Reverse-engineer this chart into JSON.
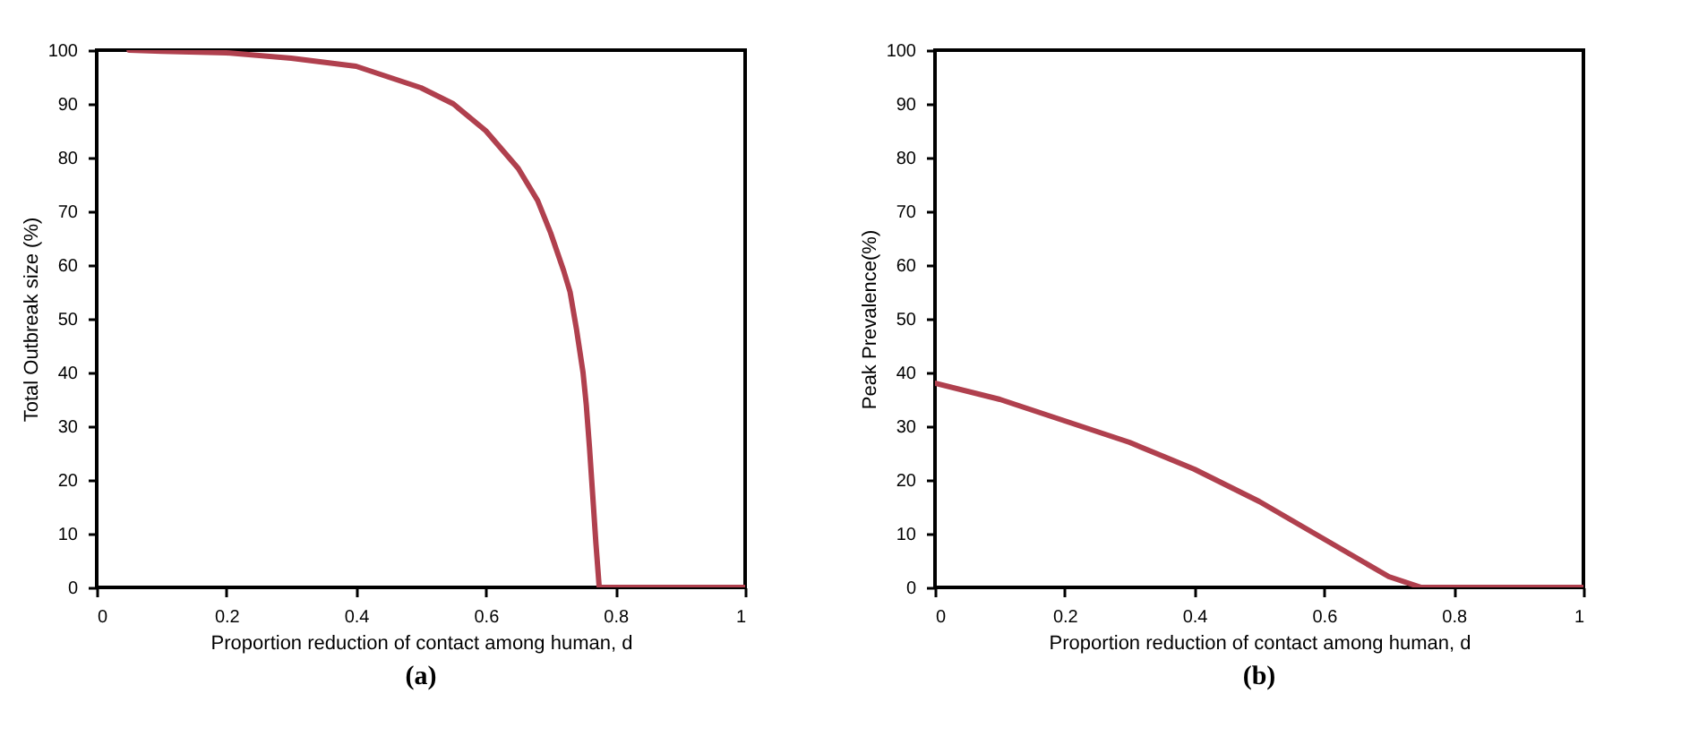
{
  "chart_data": [
    {
      "type": "line",
      "title": "(a)",
      "xlabel": "Proportion reduction of contact among human, d",
      "ylabel": "Total Outbreak size (%)",
      "xlim": [
        0,
        1
      ],
      "xticks": [
        0,
        0.2,
        0.4,
        0.6,
        0.8,
        1
      ],
      "ylim": [
        0,
        100
      ],
      "yticks": [
        0,
        10,
        20,
        30,
        40,
        50,
        60,
        70,
        80,
        90,
        100
      ],
      "grid": false,
      "marker": "none",
      "line_style": "solid",
      "series": [
        {
          "color": "#b0404e",
          "x": [
            0.05,
            0.1,
            0.2,
            0.3,
            0.4,
            0.45,
            0.5,
            0.55,
            0.6,
            0.65,
            0.68,
            0.7,
            0.72,
            0.73,
            0.74,
            0.75,
            0.755,
            0.76,
            0.765,
            0.77,
            0.775,
            0.8,
            0.9,
            1
          ],
          "values": [
            100,
            99.8,
            99.5,
            98.5,
            97,
            95,
            93,
            90,
            85,
            78,
            72,
            66,
            59,
            55,
            48,
            40,
            34,
            26,
            17,
            8,
            0,
            0,
            0,
            0
          ]
        }
      ]
    },
    {
      "type": "line",
      "title": "(b)",
      "xlabel": "Proportion reduction of contact among human, d",
      "ylabel": "Peak Prevalence(%)",
      "xlim": [
        0,
        1
      ],
      "xticks": [
        0,
        0.2,
        0.4,
        0.6,
        0.8,
        1
      ],
      "ylim": [
        0,
        100
      ],
      "yticks": [
        0,
        10,
        20,
        30,
        40,
        50,
        60,
        70,
        80,
        90,
        100
      ],
      "grid": false,
      "marker": "none",
      "line_style": "solid",
      "series": [
        {
          "color": "#b0404e",
          "x": [
            0,
            0.1,
            0.2,
            0.3,
            0.4,
            0.5,
            0.6,
            0.65,
            0.7,
            0.75,
            0.8,
            0.9,
            1
          ],
          "values": [
            38,
            35,
            31,
            27,
            22,
            16,
            9,
            5.5,
            2,
            0,
            0,
            0,
            0
          ]
        }
      ]
    }
  ]
}
